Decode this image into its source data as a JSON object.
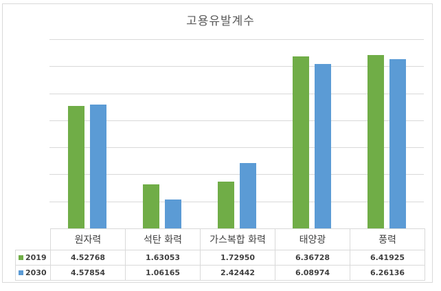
{
  "chart_data": {
    "type": "bar",
    "title": "고용유발계수",
    "xlabel": "",
    "ylabel": "",
    "ylim": [
      0,
      7
    ],
    "grid": true,
    "legend_position": "data-table",
    "categories": [
      "원자력",
      "석탄 화력",
      "가스복합 화력",
      "태양광",
      "풍력"
    ],
    "series": [
      {
        "name": "2019",
        "color": "#70AD47",
        "values": [
          4.52768,
          1.63053,
          1.7295,
          6.36728,
          6.41925
        ]
      },
      {
        "name": "2030",
        "color": "#5B9BD5",
        "values": [
          4.57854,
          1.06165,
          2.42442,
          6.08974,
          6.26136
        ]
      }
    ]
  },
  "table": {
    "header": [
      "원자력",
      "석탄 화력",
      "가스복합 화력",
      "태양광",
      "풍력"
    ],
    "rows": [
      {
        "label": "2019",
        "values": [
          "4.52768",
          "1.63053",
          "1.72950",
          "6.36728",
          "6.41925"
        ]
      },
      {
        "label": "2030",
        "values": [
          "4.57854",
          "1.06165",
          "2.42442",
          "6.08974",
          "6.26136"
        ]
      }
    ]
  }
}
